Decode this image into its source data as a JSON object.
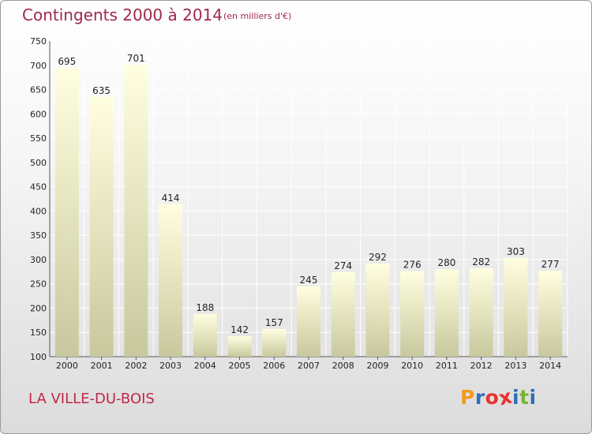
{
  "header": {
    "title": "Contingents 2000 à 2014",
    "subtitle": "(en milliers d'€)"
  },
  "footer": {
    "town": "LA VILLE-DU-BOIS",
    "logo_letters": [
      "P",
      "r",
      "o",
      "x",
      "i",
      "t",
      "i"
    ],
    "logo_colors": [
      "#f29a1f",
      "#2f6fb8",
      "#e8322b",
      "#e8322b",
      "#2f6fb8",
      "#7ab431",
      "#2f6fb8"
    ]
  },
  "chart_data": {
    "type": "bar",
    "title": "Contingents 2000 à 2014",
    "subtitle": "(en milliers d'€)",
    "categories": [
      "2000",
      "2001",
      "2002",
      "2003",
      "2004",
      "2005",
      "2006",
      "2007",
      "2008",
      "2009",
      "2010",
      "2011",
      "2012",
      "2013",
      "2014"
    ],
    "values": [
      695,
      635,
      701,
      414,
      188,
      142,
      157,
      245,
      274,
      292,
      276,
      280,
      282,
      303,
      277
    ],
    "ylim": [
      100,
      750
    ],
    "yticks": [
      100,
      150,
      200,
      250,
      300,
      350,
      400,
      450,
      500,
      550,
      600,
      650,
      700,
      750
    ],
    "grid": true,
    "bar_color_top": "#ffffe0",
    "bar_color_bottom": "#c8c89e"
  }
}
